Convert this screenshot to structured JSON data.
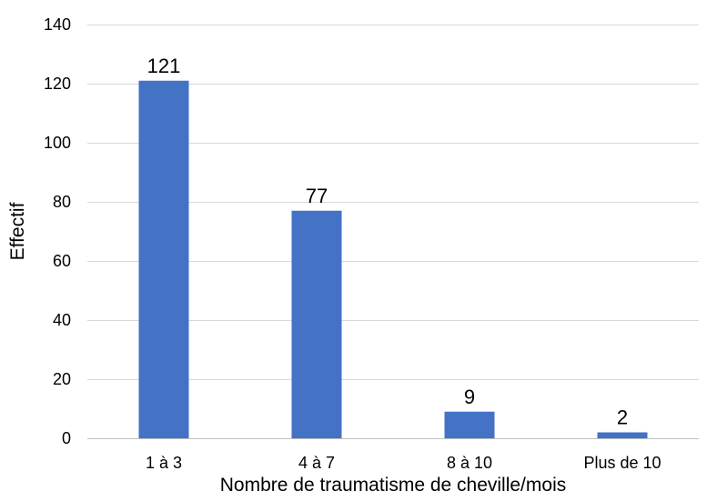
{
  "chart_data": {
    "type": "bar",
    "title": "",
    "xlabel": "Nombre de traumatisme de cheville/mois",
    "ylabel": "Effectif",
    "categories": [
      "1 à 3",
      "4 à 7",
      "8 à 10",
      "Plus de 10"
    ],
    "values": [
      121,
      77,
      9,
      2
    ],
    "data_labels": [
      "121",
      "77",
      "9",
      "2"
    ],
    "ylim": [
      0,
      140
    ],
    "yticks": [
      0,
      20,
      40,
      60,
      80,
      100,
      120,
      140
    ],
    "ytick_labels": [
      "0",
      "20",
      "40",
      "60",
      "80",
      "100",
      "120",
      "140"
    ],
    "grid": true,
    "legend": "none",
    "bar_color": "#4472c4",
    "grid_color": "#d9d9d9"
  }
}
